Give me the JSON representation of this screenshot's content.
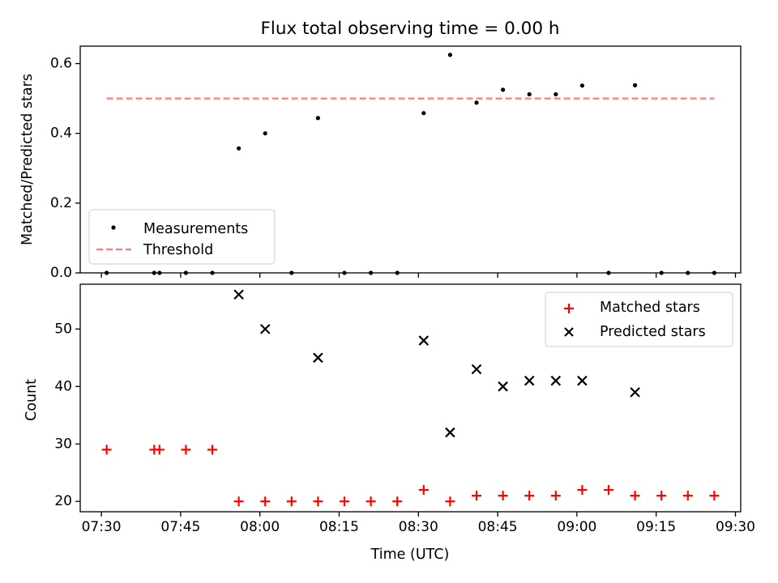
{
  "chart_data": [
    {
      "type": "scatter",
      "title": "Flux total observing time = 0.00 h",
      "xlabel": "",
      "ylabel": "Matched/Predicted stars",
      "xlim": [
        "07:26",
        "09:31"
      ],
      "ylim": [
        0,
        0.65
      ],
      "yticks": [
        0.0,
        0.2,
        0.4,
        0.6
      ],
      "ytick_labels": [
        "0.0",
        "0.2",
        "0.4",
        "0.6"
      ],
      "grid": false,
      "legend_position": "lower-left",
      "series": [
        {
          "name": "Measurements",
          "kind": "scatter",
          "marker": "dot",
          "color": "#000000",
          "points": [
            {
              "x": "07:31",
              "y": 0.0
            },
            {
              "x": "07:40",
              "y": 0.0
            },
            {
              "x": "07:41",
              "y": 0.0
            },
            {
              "x": "07:46",
              "y": 0.0
            },
            {
              "x": "07:51",
              "y": 0.0
            },
            {
              "x": "07:56",
              "y": 0.357
            },
            {
              "x": "08:01",
              "y": 0.4
            },
            {
              "x": "08:06",
              "y": 0.0
            },
            {
              "x": "08:11",
              "y": 0.444
            },
            {
              "x": "08:16",
              "y": 0.0
            },
            {
              "x": "08:21",
              "y": 0.0
            },
            {
              "x": "08:26",
              "y": 0.0
            },
            {
              "x": "08:31",
              "y": 0.458
            },
            {
              "x": "08:36",
              "y": 0.625
            },
            {
              "x": "08:41",
              "y": 0.488
            },
            {
              "x": "08:46",
              "y": 0.525
            },
            {
              "x": "08:51",
              "y": 0.512
            },
            {
              "x": "08:56",
              "y": 0.512
            },
            {
              "x": "09:01",
              "y": 0.537
            },
            {
              "x": "09:06",
              "y": 0.0
            },
            {
              "x": "09:11",
              "y": 0.538
            },
            {
              "x": "09:16",
              "y": 0.0
            },
            {
              "x": "09:21",
              "y": 0.0
            },
            {
              "x": "09:26",
              "y": 0.0
            }
          ]
        },
        {
          "name": "Threshold",
          "kind": "line",
          "style": "dashed",
          "color": "#ff7b7b",
          "points": [
            {
              "x": "07:31",
              "y": 0.5
            },
            {
              "x": "09:26",
              "y": 0.5
            }
          ]
        }
      ]
    },
    {
      "type": "scatter",
      "title": "",
      "xlabel": "Time (UTC)",
      "ylabel": "Count",
      "xlim": [
        "07:26",
        "09:31"
      ],
      "ylim": [
        18.2,
        57.8
      ],
      "yticks": [
        20,
        30,
        40,
        50
      ],
      "ytick_labels": [
        "20",
        "30",
        "40",
        "50"
      ],
      "xticks": [
        "07:30",
        "07:45",
        "08:00",
        "08:15",
        "08:30",
        "08:45",
        "09:00",
        "09:15",
        "09:30"
      ],
      "xtick_labels": [
        "07:30",
        "07:45",
        "08:00",
        "08:15",
        "08:30",
        "08:45",
        "09:00",
        "09:15",
        "09:30"
      ],
      "grid": false,
      "legend_position": "upper-right",
      "series": [
        {
          "name": "Matched stars",
          "kind": "scatter",
          "marker": "plus",
          "color": "#ff0000",
          "points": [
            {
              "x": "07:31",
              "y": 29
            },
            {
              "x": "07:40",
              "y": 29
            },
            {
              "x": "07:41",
              "y": 29
            },
            {
              "x": "07:46",
              "y": 29
            },
            {
              "x": "07:51",
              "y": 29
            },
            {
              "x": "07:56",
              "y": 20
            },
            {
              "x": "08:01",
              "y": 20
            },
            {
              "x": "08:06",
              "y": 20
            },
            {
              "x": "08:11",
              "y": 20
            },
            {
              "x": "08:16",
              "y": 20
            },
            {
              "x": "08:21",
              "y": 20
            },
            {
              "x": "08:26",
              "y": 20
            },
            {
              "x": "08:31",
              "y": 22
            },
            {
              "x": "08:36",
              "y": 20
            },
            {
              "x": "08:41",
              "y": 21
            },
            {
              "x": "08:46",
              "y": 21
            },
            {
              "x": "08:51",
              "y": 21
            },
            {
              "x": "08:56",
              "y": 21
            },
            {
              "x": "09:01",
              "y": 22
            },
            {
              "x": "09:06",
              "y": 22
            },
            {
              "x": "09:11",
              "y": 21
            },
            {
              "x": "09:16",
              "y": 21
            },
            {
              "x": "09:21",
              "y": 21
            },
            {
              "x": "09:26",
              "y": 21
            }
          ]
        },
        {
          "name": "Predicted stars",
          "kind": "scatter",
          "marker": "x",
          "color": "#000000",
          "points": [
            {
              "x": "07:56",
              "y": 56
            },
            {
              "x": "08:01",
              "y": 50
            },
            {
              "x": "08:11",
              "y": 45
            },
            {
              "x": "08:31",
              "y": 48
            },
            {
              "x": "08:36",
              "y": 32
            },
            {
              "x": "08:41",
              "y": 43
            },
            {
              "x": "08:46",
              "y": 40
            },
            {
              "x": "08:51",
              "y": 41
            },
            {
              "x": "08:56",
              "y": 41
            },
            {
              "x": "09:01",
              "y": 41
            },
            {
              "x": "09:11",
              "y": 39
            }
          ]
        }
      ]
    }
  ]
}
